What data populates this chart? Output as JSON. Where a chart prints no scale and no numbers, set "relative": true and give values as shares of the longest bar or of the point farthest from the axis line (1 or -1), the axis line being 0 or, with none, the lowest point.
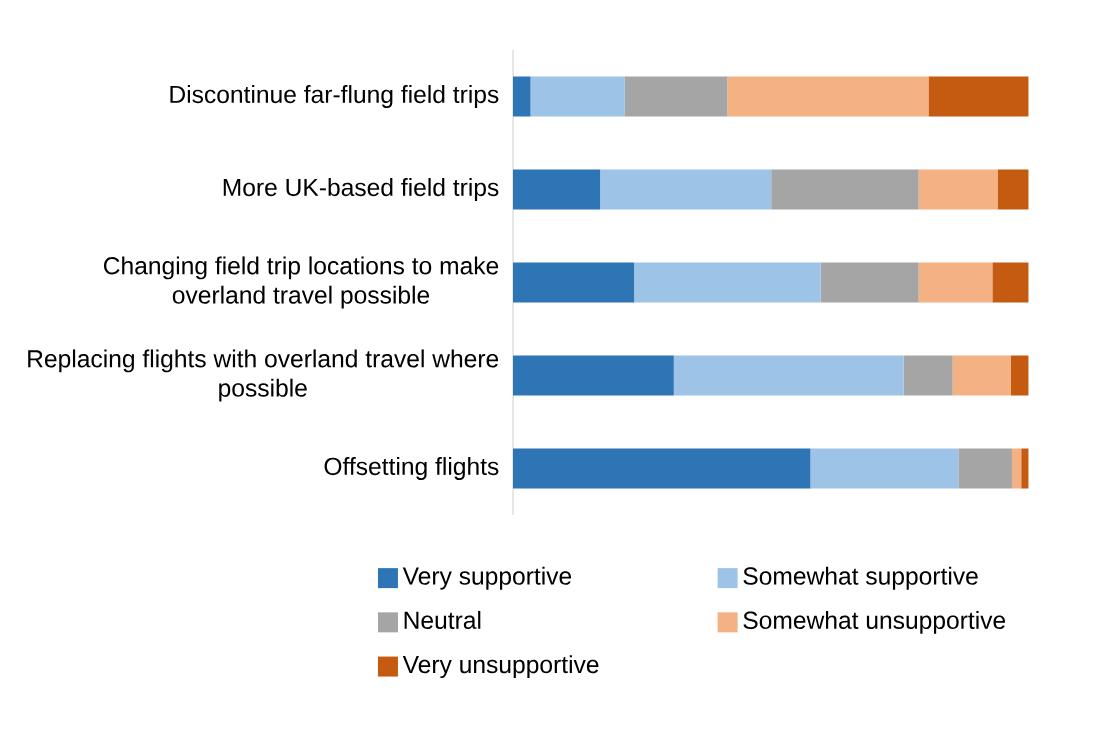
{
  "chart_data": {
    "type": "bar",
    "orientation": "horizontal",
    "stacked": true,
    "relative": true,
    "legend": "bottom",
    "categories": [
      "Discontinue far-flung field trips",
      "More UK-based field trips",
      "Changing field trip locations to make overland travel possible",
      "Replacing flights with overland travel where possible",
      "Offsetting flights"
    ],
    "series": [
      {
        "name": "Very supportive",
        "color": "#2e75b6",
        "values": [
          0.034,
          0.169,
          0.235,
          0.312,
          0.577
        ]
      },
      {
        "name": "Somewhat supportive",
        "color": "#9dc3e6",
        "values": [
          0.183,
          0.332,
          0.362,
          0.446,
          0.287
        ]
      },
      {
        "name": "Neutral",
        "color": "#a5a5a5",
        "values": [
          0.199,
          0.286,
          0.19,
          0.095,
          0.104
        ]
      },
      {
        "name": "Somewhat unsupportive",
        "color": "#f4b183",
        "values": [
          0.39,
          0.153,
          0.143,
          0.113,
          0.018
        ]
      },
      {
        "name": "Very unsupportive",
        "color": "#c55a11",
        "values": [
          0.194,
          0.06,
          0.07,
          0.034,
          0.014
        ]
      }
    ]
  }
}
